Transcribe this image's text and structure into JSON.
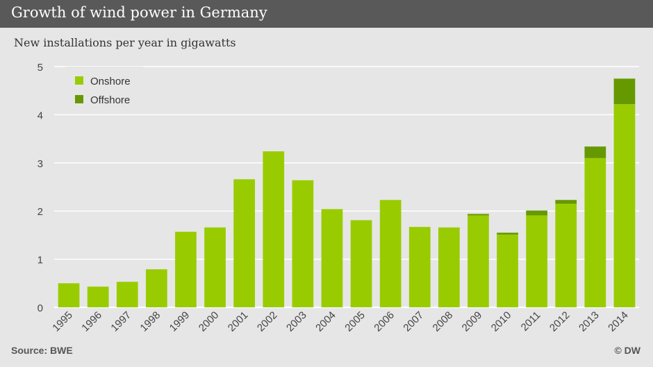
{
  "title": "Growth of wind power in Germany",
  "subtitle": "New installations per year in gigawatts",
  "source": "Source: BWE",
  "credit": "© DW",
  "colors": {
    "onshore": "#99cc00",
    "offshore": "#669900",
    "header": "#595959",
    "background": "#e6e6e6"
  },
  "chart_data": {
    "type": "bar",
    "stacked": true,
    "categories": [
      "1995",
      "1996",
      "1997",
      "1998",
      "1999",
      "2000",
      "2001",
      "2002",
      "2003",
      "2004",
      "2005",
      "2006",
      "2007",
      "2008",
      "2009",
      "2010",
      "2011",
      "2012",
      "2013",
      "2014"
    ],
    "series": [
      {
        "name": "Onshore",
        "values": [
          0.5,
          0.43,
          0.53,
          0.79,
          1.57,
          1.66,
          2.66,
          3.24,
          2.64,
          2.04,
          1.81,
          2.23,
          1.67,
          1.66,
          1.91,
          1.51,
          1.91,
          2.15,
          3.1,
          4.22
        ]
      },
      {
        "name": "Offshore",
        "values": [
          0,
          0,
          0,
          0,
          0,
          0,
          0,
          0,
          0,
          0,
          0,
          0,
          0,
          0,
          0.03,
          0.04,
          0.1,
          0.08,
          0.24,
          0.53
        ]
      }
    ],
    "y_ticks": [
      "0",
      "1",
      "2",
      "3",
      "4",
      "5"
    ],
    "ylim": [
      0,
      5
    ],
    "legend_position": "top-left",
    "grid": true
  }
}
